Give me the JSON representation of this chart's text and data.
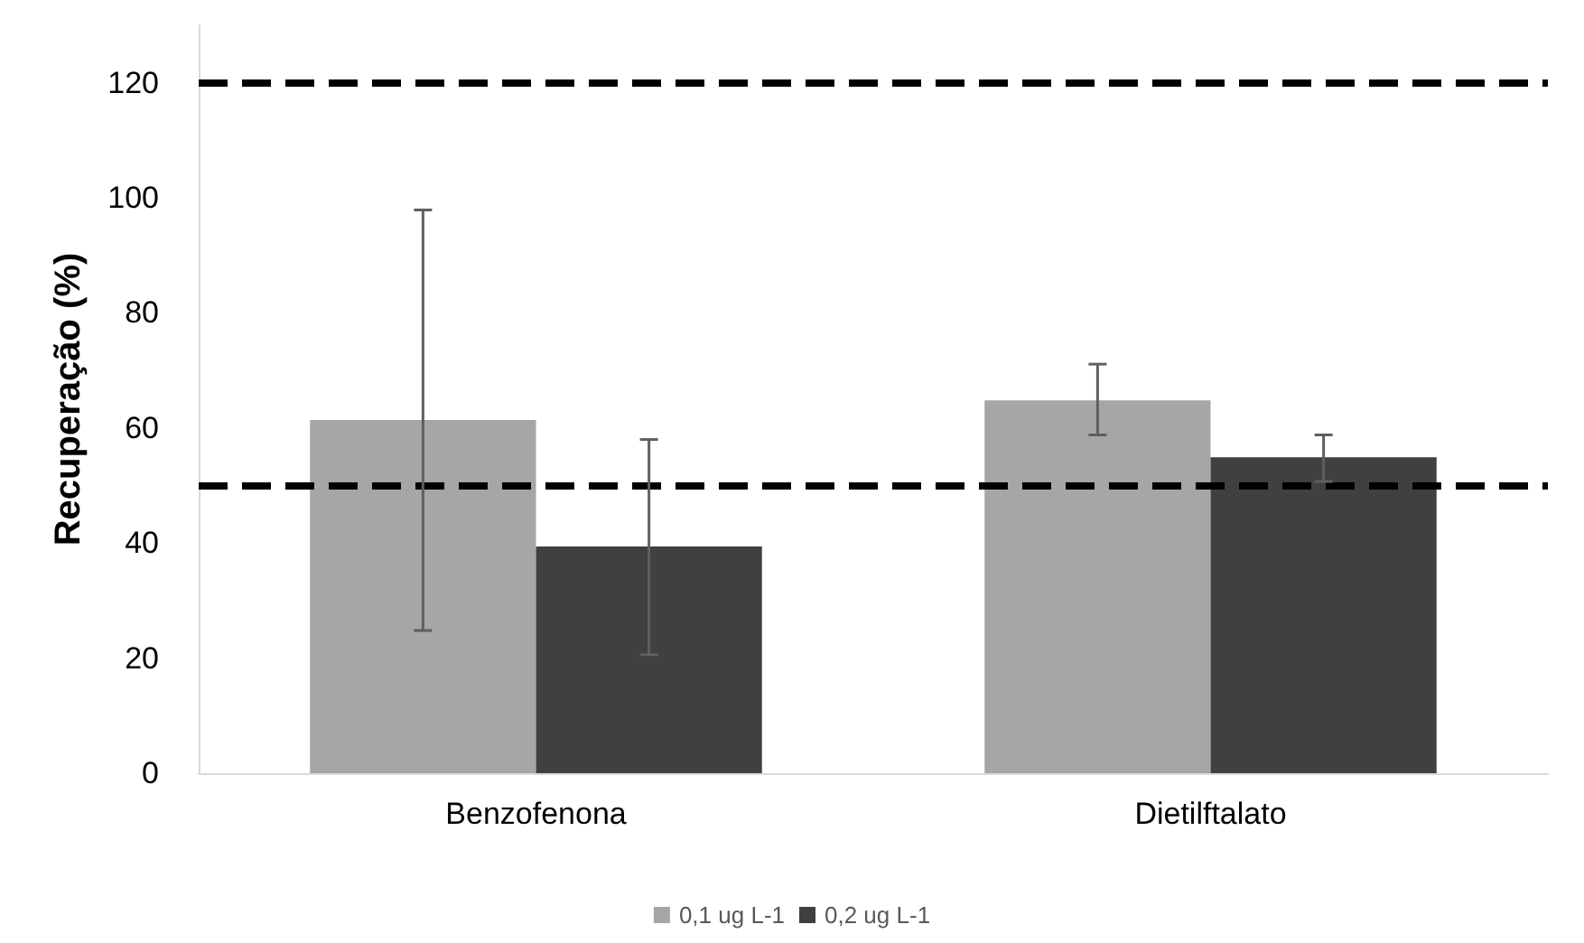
{
  "chart_data": {
    "type": "bar",
    "ylabel": "Recuperação (%)",
    "categories": [
      "Benzofenona",
      "Dietilftalato"
    ],
    "series": [
      {
        "name": "0,1 ug L-1",
        "color": "#a6a6a6",
        "values": [
          61.4,
          64.8
        ],
        "errors": [
          [
            24.8,
            97.9
          ],
          [
            58.8,
            71.1
          ]
        ]
      },
      {
        "name": "0,2 ug L-1",
        "color": "#404040",
        "values": [
          39.4,
          54.9
        ],
        "errors": [
          [
            20.6,
            58.0
          ],
          [
            50.7,
            58.8
          ]
        ]
      }
    ],
    "ylim": [
      0,
      130
    ],
    "yticks": [
      0,
      20,
      40,
      60,
      80,
      100,
      120
    ],
    "grid": false,
    "legend": "bottom",
    "ref_lines": [
      {
        "axis": "y",
        "value": 120,
        "color": "#000000",
        "line_style": "dashed"
      },
      {
        "axis": "y",
        "value": 50,
        "color": "#000000",
        "line_style": "dashed"
      }
    ]
  }
}
